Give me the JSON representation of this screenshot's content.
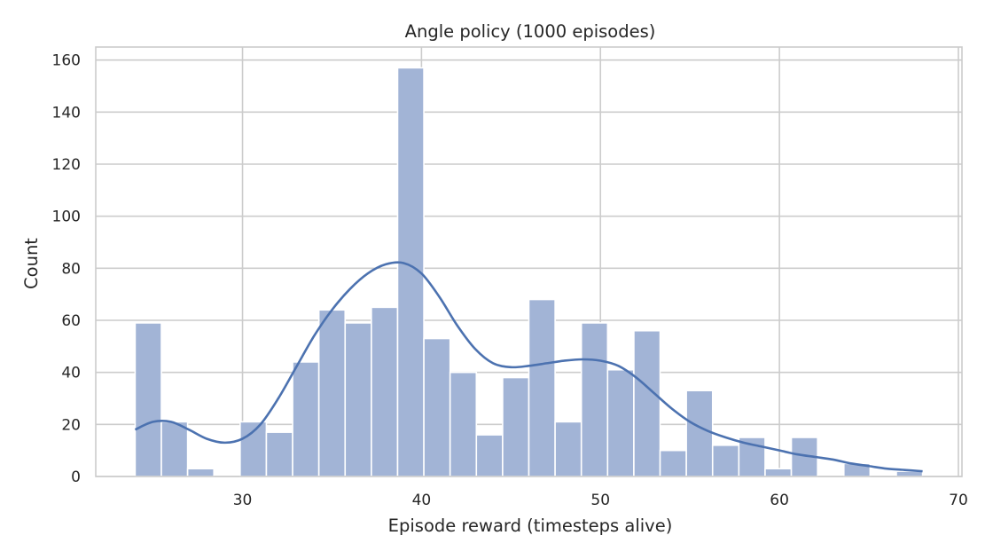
{
  "chart_data": {
    "type": "bar",
    "title": "Angle policy (1000 episodes)",
    "xlabel": "Episode reward (timesteps alive)",
    "ylabel": "Count",
    "xlim": [
      21.8,
      70.2
    ],
    "ylim": [
      0,
      165
    ],
    "xticks": [
      30,
      40,
      50,
      60,
      70
    ],
    "yticks": [
      0,
      20,
      40,
      60,
      80,
      100,
      120,
      140,
      160
    ],
    "grid": true,
    "bin_edges": [
      24,
      25.4667,
      26.9333,
      28.4,
      29.8667,
      31.3333,
      32.8,
      34.2667,
      35.7333,
      37.2,
      38.6667,
      40.1333,
      41.6,
      43.0667,
      44.5333,
      46,
      47.4667,
      48.9333,
      50.4,
      51.8667,
      53.3333,
      54.8,
      56.2667,
      57.7333,
      59.2,
      60.6667,
      62.1333,
      63.6,
      65.0667,
      66.5333,
      68
    ],
    "counts": [
      59,
      21,
      3,
      0,
      21,
      17,
      44,
      64,
      59,
      65,
      157,
      53,
      40,
      16,
      38,
      68,
      21,
      59,
      41,
      56,
      10,
      33,
      12,
      15,
      3,
      15,
      0,
      5,
      0,
      2
    ],
    "kde": {
      "x": [
        24,
        25,
        26,
        27,
        28,
        29,
        30,
        31,
        32,
        33,
        34,
        35,
        36,
        37,
        38,
        39,
        40,
        41,
        42,
        43,
        44,
        45,
        46,
        47,
        48,
        49,
        50,
        51,
        52,
        53,
        54,
        55,
        56,
        57,
        58,
        59,
        60,
        61,
        62,
        63,
        64,
        65,
        66,
        67,
        68
      ],
      "y": [
        18,
        21,
        21,
        18,
        14.5,
        13,
        14.5,
        20,
        30,
        42,
        54,
        64,
        72,
        78,
        81.5,
        82,
        78,
        69,
        58,
        49,
        43.5,
        42,
        42.5,
        43.5,
        44.5,
        45,
        44.5,
        42.5,
        38,
        32,
        26,
        21,
        17.5,
        15,
        13,
        11.5,
        10,
        8.5,
        7.5,
        6.5,
        5,
        4,
        3,
        2.5,
        2
      ]
    },
    "colors": {
      "bar": "#a2b4d6",
      "kde": "#4c72b0",
      "grid": "#cccccc",
      "axes_edge": "#cccccc"
    }
  }
}
